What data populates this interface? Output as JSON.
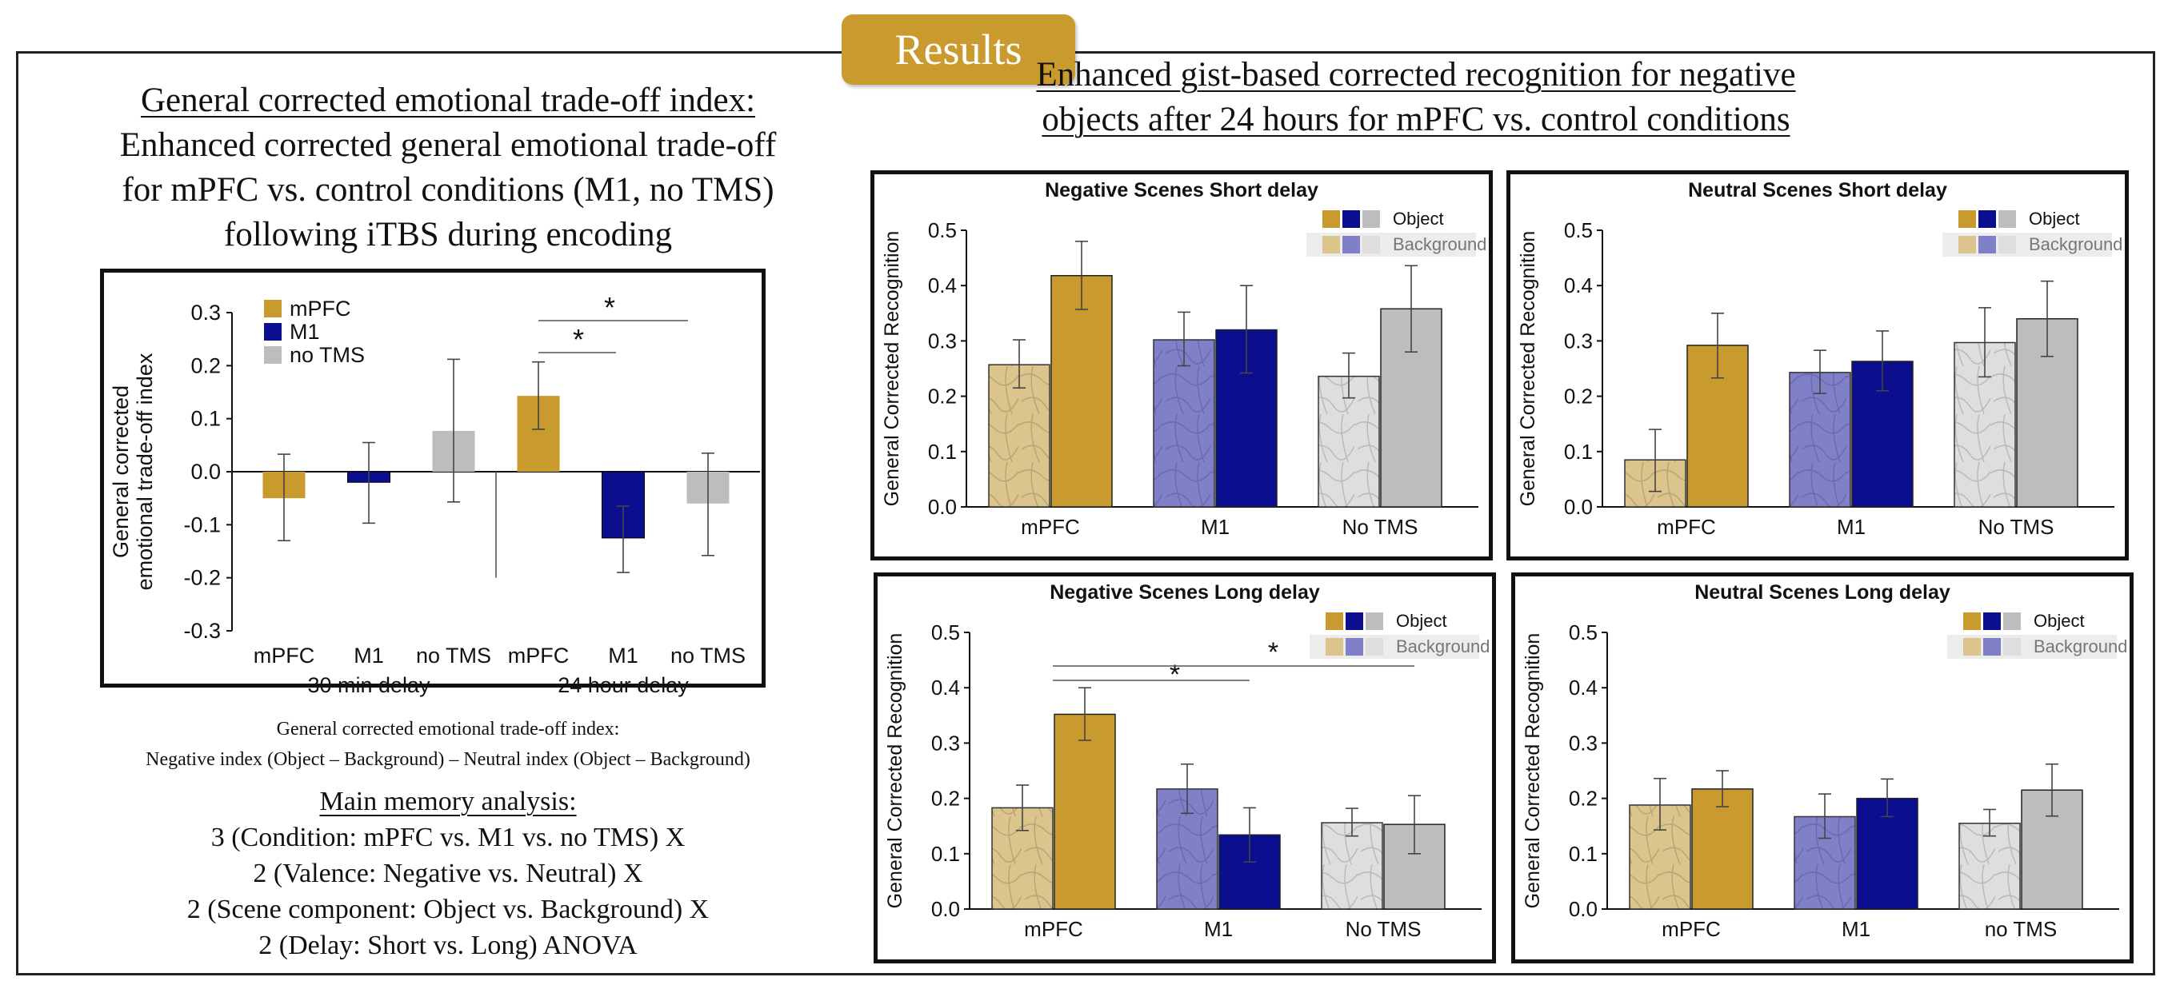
{
  "banner": "Results",
  "left_title": {
    "underlined": "General corrected emotional trade-off index:",
    "lines": [
      "Enhanced corrected general emotional trade-off",
      "for mPFC vs. control conditions (M1, no TMS)",
      "following iTBS during encoding"
    ]
  },
  "right_title": {
    "lines": [
      "Enhanced gist-based corrected recognition for negative",
      "objects after 24 hours for mPFC vs. control conditions"
    ]
  },
  "index_formula": {
    "line1": "General corrected emotional trade-off index:",
    "line2": "Negative index (Object – Background) – Neutral index (Object – Background)"
  },
  "anova": {
    "title": "Main memory analysis:",
    "lines": [
      "3 (Condition: mPFC vs. M1 vs. no TMS) X",
      "2 (Valence: Negative vs. Neutral) X",
      "2 (Scene component: Object vs. Background)  X",
      "2 (Delay: Short vs. Long) ANOVA"
    ]
  },
  "colors": {
    "mpfc": "#c99a2e",
    "m1": "#0b0f8f",
    "notms": "#bdbdbd",
    "mpfc_bg": "#dcc58c",
    "m1_bg": "#7f80c8",
    "notms_bg": "#dedede"
  },
  "chart_data": [
    {
      "type": "bar",
      "title": "",
      "ylabel": "General corrected emotional trade-off index",
      "ylim": [
        -0.3,
        0.3
      ],
      "yticks": [
        "0.3",
        "0.2",
        "0.1",
        "0.0",
        "-0.1",
        "-0.2",
        "-0.3"
      ],
      "legend": [
        "mPFC",
        "M1",
        "no TMS"
      ],
      "legend_position": "top-left",
      "groups": [
        "30 min delay",
        "24 hour delay"
      ],
      "categories": [
        "mPFC",
        "M1",
        "no TMS",
        "mPFC",
        "M1",
        "no TMS"
      ],
      "values": [
        -0.05,
        -0.02,
        0.077,
        0.143,
        -0.125,
        -0.06
      ],
      "error_low": [
        -0.13,
        -0.097,
        -0.057,
        0.08,
        -0.19,
        -0.158
      ],
      "error_high": [
        0.033,
        0.055,
        0.212,
        0.207,
        -0.065,
        0.035
      ],
      "significance": [
        {
          "from": "mPFC (24 hour)",
          "to": "M1 (24 hour)",
          "label": "*"
        },
        {
          "from": "mPFC (24 hour)",
          "to": "no TMS (24 hour)",
          "label": "*"
        }
      ]
    },
    {
      "type": "bar",
      "title": "Negative Scenes Short delay",
      "ylabel": "General Corrected Recognition",
      "ylim": [
        0,
        0.5
      ],
      "yticks": [
        "0.0",
        "0.1",
        "0.2",
        "0.3",
        "0.4",
        "0.5"
      ],
      "categories": [
        "mPFC",
        "M1",
        "No TMS"
      ],
      "legend": [
        "Object",
        "Background"
      ],
      "series": [
        {
          "name": "Background",
          "values": [
            0.257,
            0.302,
            0.236
          ],
          "err_low": [
            0.215,
            0.255,
            0.197
          ],
          "err_high": [
            0.302,
            0.352,
            0.278
          ]
        },
        {
          "name": "Object",
          "values": [
            0.418,
            0.32,
            0.358
          ],
          "err_low": [
            0.357,
            0.242,
            0.28
          ],
          "err_high": [
            0.48,
            0.4,
            0.436
          ]
        }
      ]
    },
    {
      "type": "bar",
      "title": "Neutral Scenes Short delay",
      "ylabel": "General Corrected Recognition",
      "ylim": [
        0,
        0.5
      ],
      "yticks": [
        "0.0",
        "0.1",
        "0.2",
        "0.3",
        "0.4",
        "0.5"
      ],
      "categories": [
        "mPFC",
        "M1",
        "No TMS"
      ],
      "legend": [
        "Object",
        "Background"
      ],
      "series": [
        {
          "name": "Background",
          "values": [
            0.085,
            0.243,
            0.297
          ],
          "err_low": [
            0.028,
            0.205,
            0.235
          ],
          "err_high": [
            0.14,
            0.283,
            0.36
          ]
        },
        {
          "name": "Object",
          "values": [
            0.292,
            0.263,
            0.34
          ],
          "err_low": [
            0.233,
            0.21,
            0.272
          ],
          "err_high": [
            0.35,
            0.318,
            0.408
          ]
        }
      ]
    },
    {
      "type": "bar",
      "title": "Negative Scenes Long delay",
      "ylabel": "General Corrected Recognition",
      "ylim": [
        0,
        0.5
      ],
      "yticks": [
        "0.0",
        "0.1",
        "0.2",
        "0.3",
        "0.4",
        "0.5"
      ],
      "categories": [
        "mPFC",
        "M1",
        "No TMS"
      ],
      "legend": [
        "Object",
        "Background"
      ],
      "series": [
        {
          "name": "Background",
          "values": [
            0.183,
            0.217,
            0.156
          ],
          "err_low": [
            0.142,
            0.173,
            0.132
          ],
          "err_high": [
            0.224,
            0.262,
            0.182
          ]
        },
        {
          "name": "Object",
          "values": [
            0.352,
            0.134,
            0.153
          ],
          "err_low": [
            0.305,
            0.085,
            0.1
          ],
          "err_high": [
            0.4,
            0.183,
            0.205
          ]
        }
      ],
      "significance": [
        {
          "from": "mPFC Object",
          "to": "M1 Object",
          "label": "*"
        },
        {
          "from": "mPFC Object",
          "to": "No TMS Object",
          "label": "*"
        }
      ]
    },
    {
      "type": "bar",
      "title": "Neutral Scenes Long delay",
      "ylabel": "General Corrected Recognition",
      "ylim": [
        0,
        0.5
      ],
      "yticks": [
        "0.0",
        "0.1",
        "0.2",
        "0.3",
        "0.4",
        "0.5"
      ],
      "categories": [
        "mPFC",
        "M1",
        "no TMS"
      ],
      "legend": [
        "Object",
        "Background"
      ],
      "series": [
        {
          "name": "Background",
          "values": [
            0.188,
            0.167,
            0.155
          ],
          "err_low": [
            0.143,
            0.128,
            0.132
          ],
          "err_high": [
            0.236,
            0.208,
            0.18
          ]
        },
        {
          "name": "Object",
          "values": [
            0.217,
            0.2,
            0.215
          ],
          "err_low": [
            0.185,
            0.167,
            0.168
          ],
          "err_high": [
            0.25,
            0.235,
            0.262
          ]
        }
      ]
    }
  ]
}
